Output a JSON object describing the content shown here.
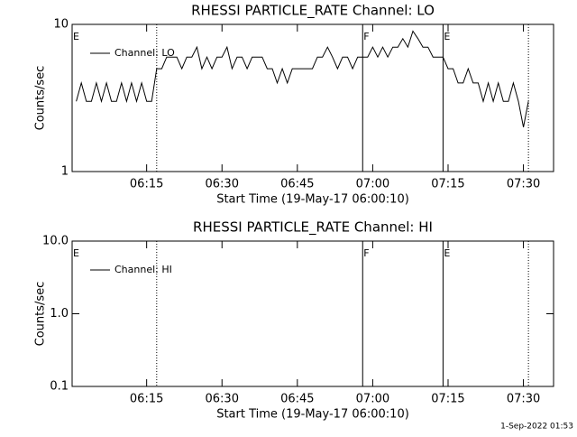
{
  "chart_data": [
    {
      "type": "line",
      "title": "RHESSI PARTICLE_RATE Channel: LO",
      "xlabel": "Start Time (19-May-17 06:00:10)",
      "ylabel": "Counts/sec",
      "log_y": true,
      "ylim": [
        1,
        10
      ],
      "yticks": [
        1,
        10
      ],
      "xlim": [
        "06:00:10",
        "07:36"
      ],
      "xticks": [
        "06:15",
        "06:30",
        "06:45",
        "07:00",
        "07:15",
        "07:30"
      ],
      "x": [
        "06:01",
        "06:02",
        "06:03",
        "06:04",
        "06:05",
        "06:06",
        "06:07",
        "06:08",
        "06:09",
        "06:10",
        "06:11",
        "06:12",
        "06:13",
        "06:14",
        "06:15",
        "06:16",
        "06:17",
        "06:18",
        "06:19",
        "06:20",
        "06:21",
        "06:22",
        "06:23",
        "06:24",
        "06:25",
        "06:26",
        "06:27",
        "06:28",
        "06:29",
        "06:30",
        "06:31",
        "06:32",
        "06:33",
        "06:34",
        "06:35",
        "06:36",
        "06:37",
        "06:38",
        "06:39",
        "06:40",
        "06:41",
        "06:42",
        "06:43",
        "06:44",
        "06:45",
        "06:46",
        "06:47",
        "06:48",
        "06:49",
        "06:50",
        "06:51",
        "06:52",
        "06:53",
        "06:54",
        "06:55",
        "06:56",
        "06:57",
        "06:58",
        "06:59",
        "07:00",
        "07:01",
        "07:02",
        "07:03",
        "07:04",
        "07:05",
        "07:06",
        "07:07",
        "07:08",
        "07:09",
        "07:10",
        "07:11",
        "07:12",
        "07:13",
        "07:14",
        "07:15",
        "07:16",
        "07:17",
        "07:18",
        "07:19",
        "07:20",
        "07:21",
        "07:22",
        "07:23",
        "07:24",
        "07:25",
        "07:26",
        "07:27",
        "07:28",
        "07:29",
        "07:30",
        "07:31"
      ],
      "series": [
        {
          "name": "Channel: LO",
          "color": "#000000",
          "values": [
            3,
            4,
            3,
            3,
            4,
            3,
            4,
            3,
            3,
            4,
            3,
            4,
            3,
            4,
            3,
            3,
            5,
            5,
            6,
            6,
            6,
            5,
            6,
            6,
            7,
            5,
            6,
            5,
            6,
            6,
            7,
            5,
            6,
            6,
            5,
            6,
            6,
            6,
            5,
            5,
            4,
            5,
            4,
            5,
            5,
            5,
            5,
            5,
            6,
            6,
            7,
            6,
            5,
            6,
            6,
            5,
            6,
            6,
            6,
            7,
            6,
            7,
            6,
            7,
            7,
            8,
            7,
            9,
            8,
            7,
            7,
            6,
            6,
            6,
            5,
            5,
            4,
            4,
            5,
            4,
            4,
            3,
            4,
            3,
            4,
            3,
            3,
            4,
            3,
            2,
            3
          ]
        }
      ],
      "vlines": [
        {
          "x": "06:17",
          "style": "dotted"
        },
        {
          "x": "06:58",
          "style": "solid"
        },
        {
          "x": "07:14",
          "style": "solid"
        },
        {
          "x": "07:31",
          "style": "dotted"
        }
      ],
      "flags": [
        {
          "x": "06:00:10",
          "label": "E"
        },
        {
          "x": "06:58",
          "label": "F"
        },
        {
          "x": "07:14",
          "label": "E"
        }
      ]
    },
    {
      "type": "line",
      "title": "RHESSI PARTICLE_RATE Channel: HI",
      "xlabel": "Start Time (19-May-17 06:00:10)",
      "ylabel": "Counts/sec",
      "log_y": true,
      "ylim": [
        0.1,
        10
      ],
      "yticks": [
        {
          "value": 0.1,
          "label": "0.1"
        },
        {
          "value": 1,
          "label": "1.0"
        },
        {
          "value": 10,
          "label": "10.0"
        }
      ],
      "xlim": [
        "06:00:10",
        "07:36"
      ],
      "xticks": [
        "06:15",
        "06:30",
        "06:45",
        "07:00",
        "07:15",
        "07:30"
      ],
      "x": [],
      "series": [
        {
          "name": "Channel: HI",
          "color": "#000000",
          "values": []
        }
      ],
      "vlines": [
        {
          "x": "06:17",
          "style": "dotted"
        },
        {
          "x": "06:58",
          "style": "solid"
        },
        {
          "x": "07:14",
          "style": "solid"
        },
        {
          "x": "07:31",
          "style": "dotted"
        }
      ],
      "flags": [
        {
          "x": "06:00:10",
          "label": "E"
        },
        {
          "x": "06:58",
          "label": "F"
        },
        {
          "x": "07:14",
          "label": "E"
        }
      ]
    }
  ],
  "footer": "1-Sep-2022 01:53"
}
